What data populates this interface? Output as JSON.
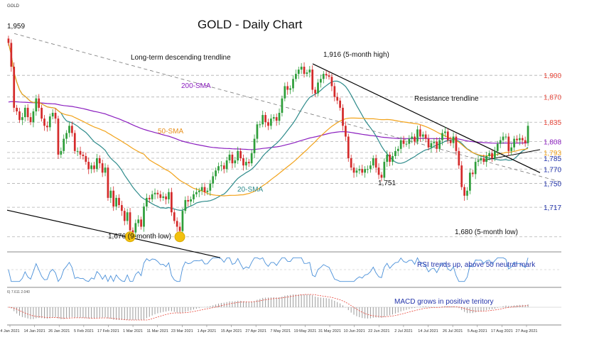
{
  "window": {
    "symbol_tag": "GOLD"
  },
  "chart_data": {
    "type": "candlestick",
    "title": "GOLD - Daily Chart",
    "x_tick_labels": [
      "4 Jan 2021",
      "14 Jan 2021",
      "26 Jan 2021",
      "5 Feb 2021",
      "17 Feb 2021",
      "1 Mar 2021",
      "11 Mar 2021",
      "23 Mar 2021",
      "1 Apr 2021",
      "15 Apr 2021",
      "27 Apr 2021",
      "7 May 2021",
      "19 May 2021",
      "31 May 2021",
      "10 Jun 2021",
      "22 Jun 2021",
      "2 Jul 2021",
      "14 Jul 2021",
      "26 Jul 2021",
      "5 Aug 2021",
      "17 Aug 2021",
      "27 Aug 2021"
    ],
    "ylim": [
      1660,
      1975
    ],
    "price_levels": [
      {
        "value": 1900,
        "label": "1,900",
        "color": "#e8473b"
      },
      {
        "value": 1870,
        "label": "1,870",
        "color": "#e8473b"
      },
      {
        "value": 1835,
        "label": "1,835",
        "color": "#e8473b"
      },
      {
        "value": 1808,
        "label": "1,808",
        "color": "#8b1fbf"
      },
      {
        "value": 1793,
        "label": "1,793",
        "color": "#f2a31b"
      },
      {
        "value": 1785,
        "label": "1,785",
        "color": "#2233aa"
      },
      {
        "value": 1770,
        "label": "1,770",
        "color": "#2233aa"
      },
      {
        "value": 1750,
        "label": "1,750",
        "color": "#2233aa"
      },
      {
        "value": 1717,
        "label": "1,717",
        "color": "#2233aa"
      }
    ],
    "annotations": {
      "start_high": "1,959",
      "long_term_trend": "Long-term descending trendline",
      "peak": "1,916 (5-month high)",
      "resistance": "Resistance trendline",
      "low_9m": "1,676 (9-month low)",
      "low_5m": "1,680 (5-month low)",
      "level_1751": "1,751",
      "sma200": "200-SMA",
      "sma50": "50-SMA",
      "sma20": "20-SMA"
    },
    "closes": [
      1945,
      1912,
      1855,
      1850,
      1838,
      1842,
      1855,
      1842,
      1835,
      1850,
      1868,
      1855,
      1840,
      1830,
      1828,
      1843,
      1848,
      1840,
      1790,
      1795,
      1812,
      1820,
      1830,
      1820,
      1795,
      1795,
      1790,
      1788,
      1780,
      1770,
      1775,
      1770,
      1785,
      1778,
      1765,
      1772,
      1730,
      1740,
      1718,
      1730,
      1720,
      1712,
      1698,
      1710,
      1685,
      1682,
      1695,
      1700,
      1690,
      1718,
      1730,
      1728,
      1735,
      1737,
      1735,
      1730,
      1732,
      1728,
      1738,
      1710,
      1698,
      1690,
      1684,
      1712,
      1727,
      1725,
      1728,
      1735,
      1738,
      1740,
      1745,
      1738,
      1740,
      1750,
      1760,
      1768,
      1774,
      1775,
      1770,
      1782,
      1790,
      1778,
      1782,
      1795,
      1785,
      1775,
      1780,
      1778,
      1792,
      1812,
      1832,
      1832,
      1845,
      1835,
      1830,
      1840,
      1842,
      1837,
      1848,
      1868,
      1885,
      1880,
      1882,
      1895,
      1902,
      1908,
      1912,
      1902,
      1904,
      1908,
      1880,
      1875,
      1890,
      1895,
      1902,
      1900,
      1898,
      1885,
      1870,
      1865,
      1855,
      1830,
      1815,
      1785,
      1772,
      1765,
      1768,
      1770,
      1765,
      1770,
      1770,
      1775,
      1785,
      1772,
      1762,
      1758,
      1780,
      1790,
      1780,
      1788,
      1795,
      1798,
      1810,
      1805,
      1805,
      1812,
      1815,
      1808,
      1825,
      1815,
      1818,
      1812,
      1800,
      1806,
      1808,
      1798,
      1810,
      1820,
      1822,
      1810,
      1806,
      1815,
      1795,
      1775,
      1745,
      1733,
      1740,
      1765,
      1763,
      1780,
      1782,
      1785,
      1780,
      1788,
      1792,
      1785,
      1795,
      1805,
      1810,
      1815,
      1815,
      1795,
      1800,
      1812,
      1810,
      1813,
      1810,
      1806,
      1830
    ],
    "series": [
      {
        "name": "200-SMA",
        "color": "#8b1fbf"
      },
      {
        "name": "50-SMA",
        "color": "#f2a31b"
      },
      {
        "name": "20-SMA",
        "color": "#2e8b8b"
      }
    ],
    "indicators": {
      "rsi_label": "RSI trends up, above 50 neutral mark",
      "macd_label": "MACD grows in positive teritory",
      "macd_header": "6) 7.611 2.040"
    }
  },
  "colors": {
    "up": "#2e9e3a",
    "down": "#d42a2a",
    "grid": "#c8c8c8",
    "trend": "#000000",
    "rsi": "#4a90d9",
    "macd_hist": "#9b9b9b",
    "macd_signal": "#e8473b"
  }
}
